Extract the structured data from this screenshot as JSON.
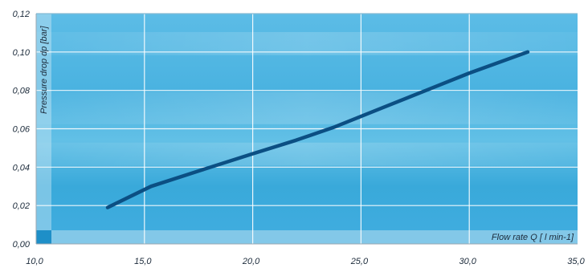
{
  "chart_data": {
    "type": "line",
    "xlabel": "Flow rate  Q [ l min-1]",
    "ylabel": "Pressure drop dp [bar]",
    "xlim": [
      10.0,
      35.0
    ],
    "ylim": [
      0.0,
      0.12
    ],
    "x_ticks": [
      10.0,
      15.0,
      20.0,
      25.0,
      30.0,
      35.0
    ],
    "x_tick_labels": [
      "10,0",
      "15,0",
      "20,0",
      "25,0",
      "30,0",
      "35,0"
    ],
    "y_ticks": [
      0.0,
      0.02,
      0.04,
      0.06,
      0.08,
      0.1,
      0.12
    ],
    "y_tick_labels": [
      "0,00",
      "0,02",
      "0,04",
      "0,06",
      "0,08",
      "0,10",
      "0,12"
    ],
    "grid": true,
    "series": [
      {
        "x": [
          13.3,
          15.3,
          17.5,
          20.0,
          22.0,
          23.8,
          26.0,
          28.0,
          30.0,
          32.7
        ],
        "values": [
          0.019,
          0.03,
          0.038,
          0.047,
          0.054,
          0.061,
          0.071,
          0.08,
          0.089,
          0.1
        ]
      }
    ],
    "colors": {
      "line": "#0b4f83",
      "background_top": "#5ab8e2",
      "background_bottom": "#3aa8d8",
      "band": "#8fcdea",
      "grid": "#ffffff"
    }
  }
}
